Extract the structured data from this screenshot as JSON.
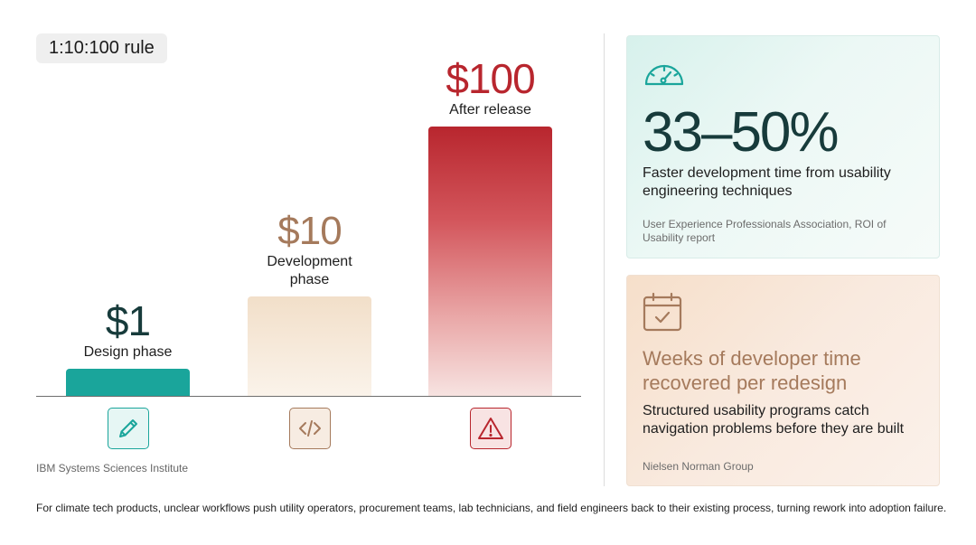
{
  "rule_label": "1:10:100 rule",
  "chart_data": {
    "type": "bar",
    "categories": [
      "Design phase",
      "Development\nphase",
      "After release"
    ],
    "values": [
      1,
      10,
      100
    ],
    "value_labels": [
      "$1",
      "$10",
      "$100"
    ],
    "title": "1:10:100 rule",
    "xlabel": "",
    "ylabel": "",
    "scale": "non-linear",
    "bar_heights_fraction": [
      0.1,
      0.37,
      1.0
    ],
    "colors": [
      "#1aa59b",
      "#f2dfc9",
      "#b8262e"
    ],
    "value_colors": [
      "#173b3b",
      "#a57a5c",
      "#b8262e"
    ],
    "icons": [
      "pencil-icon",
      "code-icon",
      "warning-icon"
    ],
    "grid": false,
    "legend": "none"
  },
  "chart_source": "IBM Systems Sciences Institute",
  "stat_card": {
    "icon": "speedometer-icon",
    "value": "33–50%",
    "description": "Faster development time from usability engineering techniques",
    "source": "User Experience Professionals Association, ROI of Usability report"
  },
  "weeks_card": {
    "icon": "calendar-check-icon",
    "heading": "Weeks of developer time recovered per redesign",
    "description": "Structured usability programs catch navigation problems before they are built",
    "source": "Nielsen Norman Group"
  },
  "footer": "For climate tech products, unclear workflows push utility operators, procurement teams, lab technicians, and field engineers back to their existing process, turning rework into adoption failure.",
  "colors": {
    "teal": "#1aa59b",
    "dark_teal": "#173b3b",
    "tan": "#a57a5c",
    "red": "#b8262e"
  }
}
